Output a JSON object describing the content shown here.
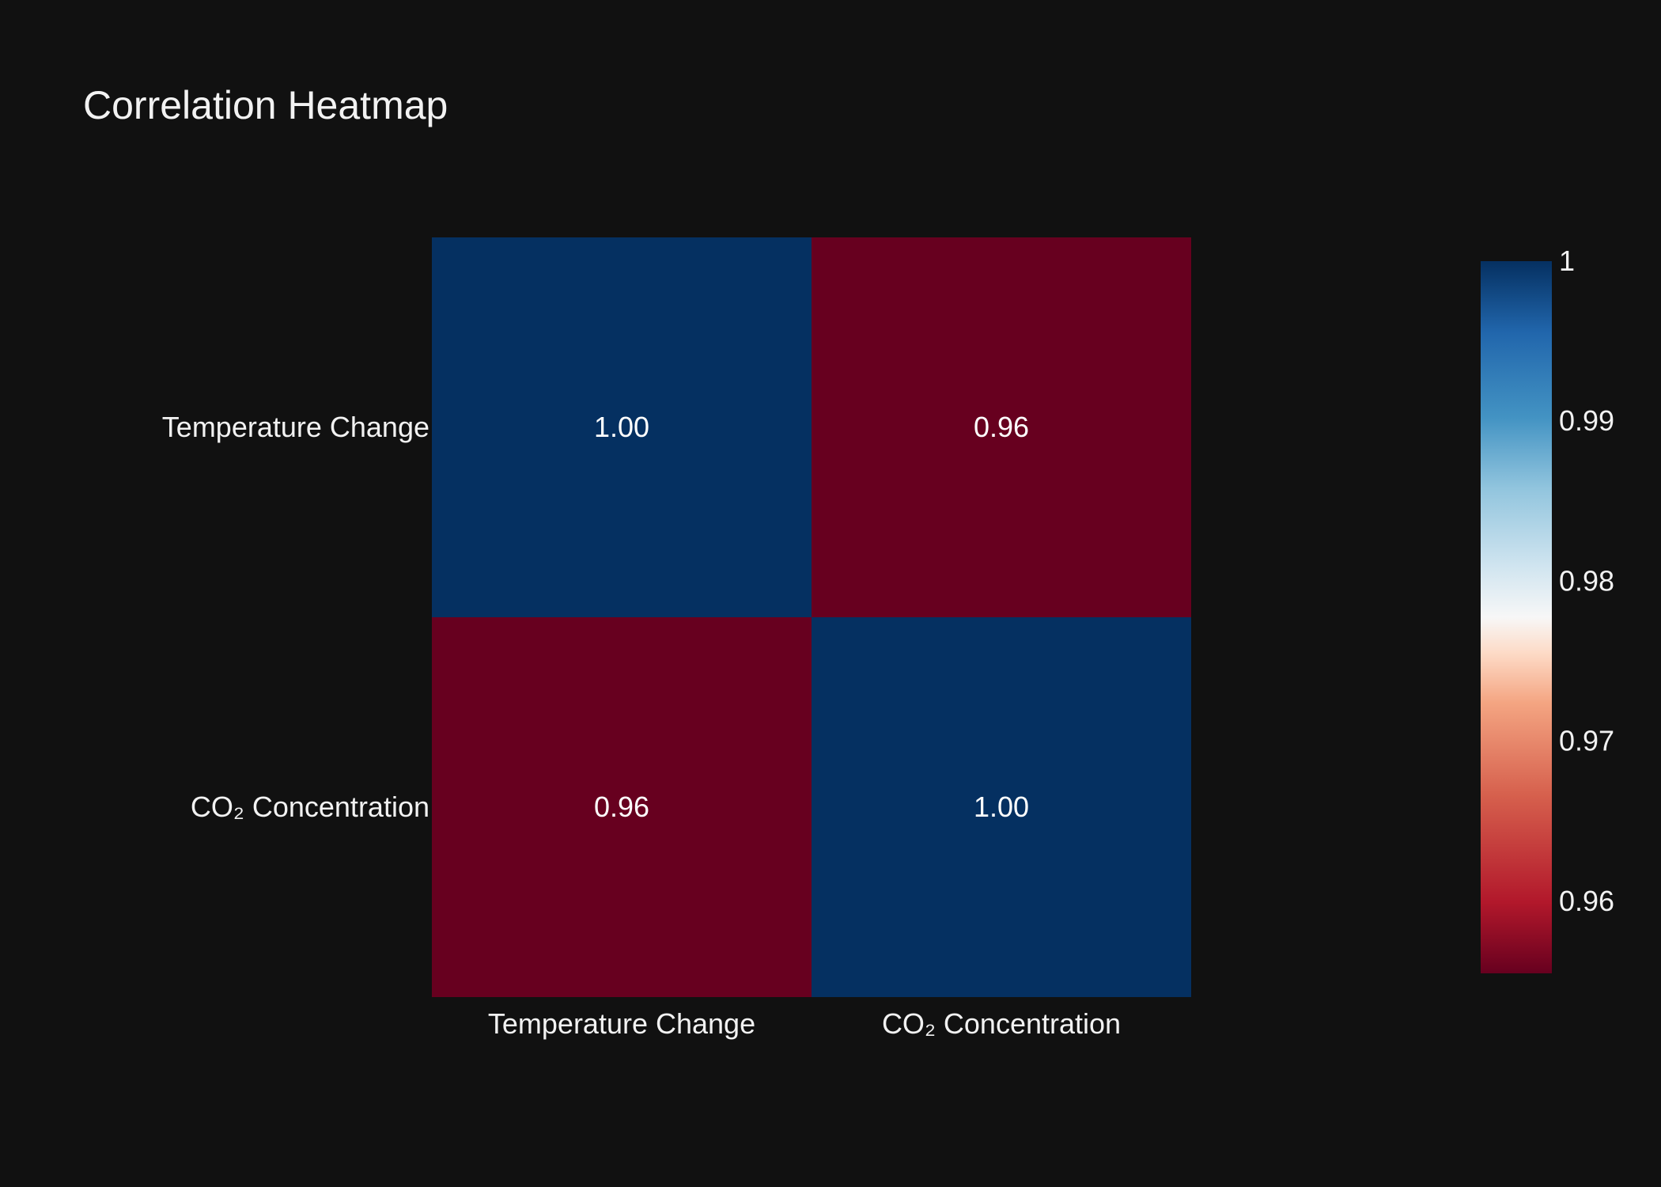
{
  "chart_data": {
    "type": "heatmap",
    "title": "Correlation Heatmap",
    "x_categories": [
      "Temperature Change",
      "CO₂ Concentration"
    ],
    "y_categories": [
      "Temperature Change",
      "CO₂ Concentration"
    ],
    "values": [
      [
        1.0,
        0.96
      ],
      [
        0.96,
        1.0
      ]
    ],
    "value_labels": [
      [
        "1.00",
        "0.96"
      ],
      [
        "0.96",
        "1.00"
      ]
    ],
    "colorscale": "RdBu",
    "colorbar": {
      "min": 0.9555,
      "max": 1.0,
      "ticks": [
        1,
        0.99,
        0.98,
        0.97,
        0.96
      ],
      "tick_labels": [
        "1",
        "0.99",
        "0.98",
        "0.97",
        "0.96"
      ]
    },
    "colors": {
      "background": "#111111",
      "high": "#053061",
      "low": "#67001f"
    }
  }
}
